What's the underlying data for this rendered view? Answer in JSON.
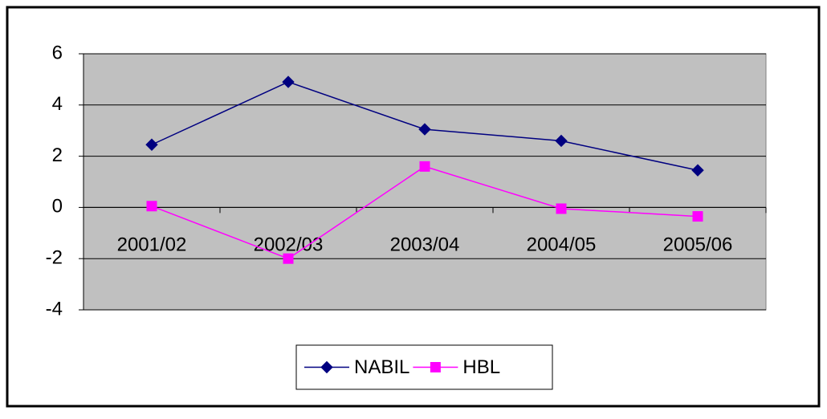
{
  "chart_data": {
    "type": "line",
    "categories": [
      "2001/02",
      "2002/03",
      "2003/04",
      "2004/05",
      "2005/06"
    ],
    "series": [
      {
        "name": "NABIL",
        "color": "#000080",
        "marker": "diamond",
        "values": [
          2.45,
          4.9,
          3.05,
          2.6,
          1.45
        ]
      },
      {
        "name": "HBL",
        "color": "#ff00ff",
        "marker": "square",
        "values": [
          0.05,
          -2.0,
          1.6,
          -0.05,
          -0.35
        ]
      }
    ],
    "ylim": [
      -4,
      6
    ],
    "yticks": [
      -4,
      -2,
      0,
      2,
      4,
      6
    ],
    "grid": true,
    "plot_background": "#c0c0c0",
    "legend": "bottom"
  }
}
